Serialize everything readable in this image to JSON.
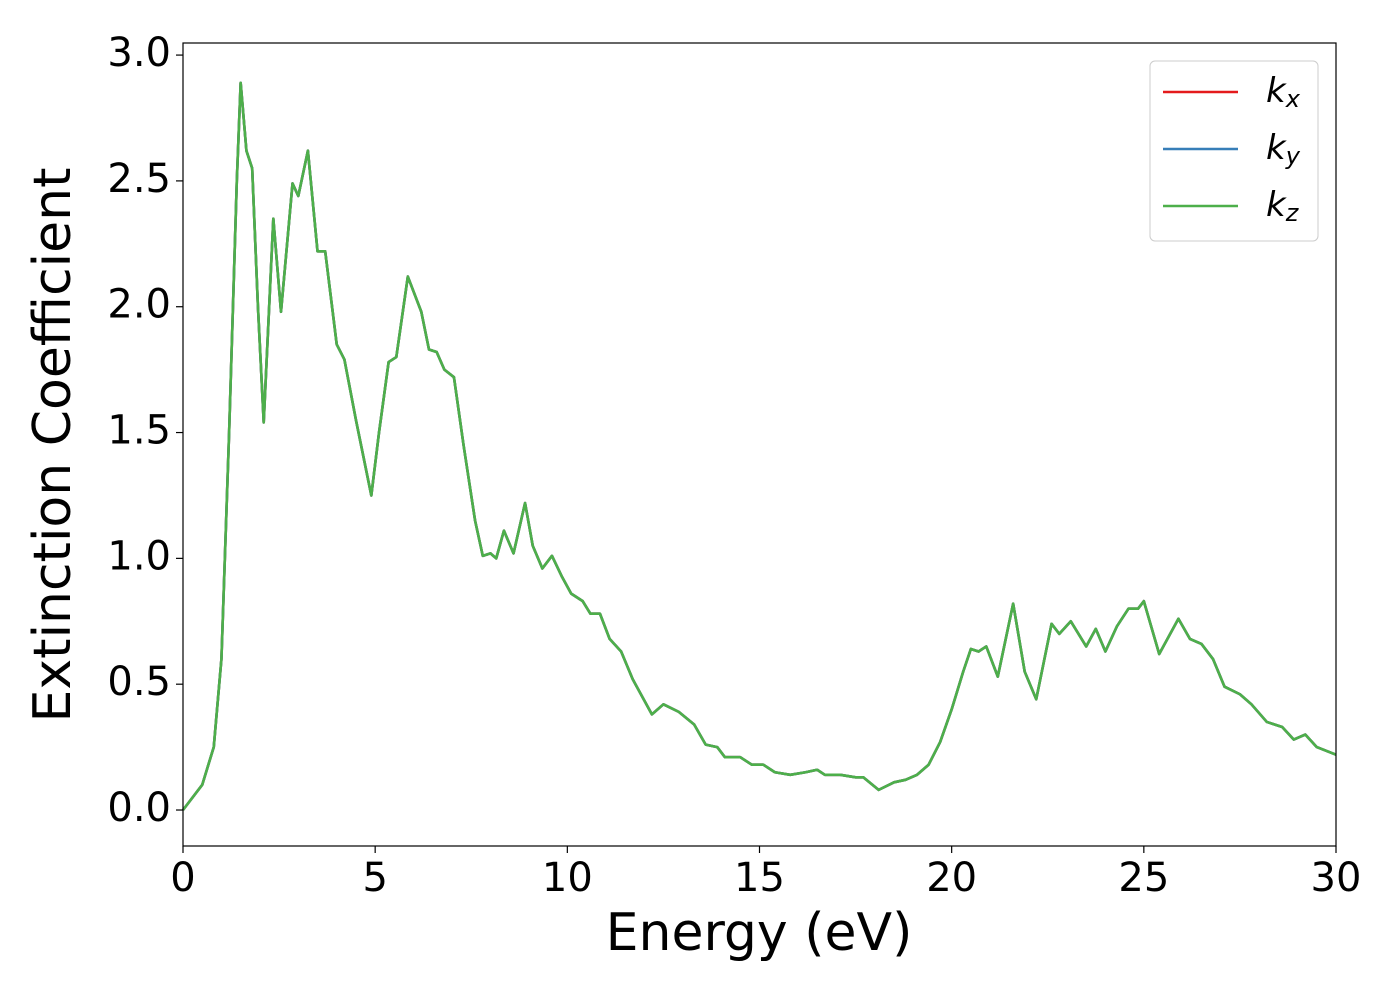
{
  "chart_data": {
    "type": "line",
    "xlabel": "Energy (eV)",
    "ylabel": "Extinction Coefficient",
    "x": [
      0,
      0.5,
      0.8,
      1.0,
      1.2,
      1.4,
      1.5,
      1.65,
      1.8,
      1.95,
      2.1,
      2.35,
      2.55,
      2.85,
      3.0,
      3.25,
      3.5,
      3.7,
      4.0,
      4.2,
      4.5,
      4.9,
      5.1,
      5.35,
      5.55,
      5.85,
      6.2,
      6.4,
      6.6,
      6.8,
      7.05,
      7.3,
      7.6,
      7.8,
      8.0,
      8.15,
      8.35,
      8.6,
      8.9,
      9.1,
      9.35,
      9.6,
      9.85,
      10.1,
      10.4,
      10.6,
      10.85,
      11.1,
      11.4,
      11.7,
      12.2,
      12.5,
      12.9,
      13.3,
      13.6,
      13.9,
      14.1,
      14.5,
      14.8,
      15.1,
      15.4,
      15.8,
      16.2,
      16.5,
      16.7,
      17.1,
      17.5,
      17.7,
      18.1,
      18.5,
      18.8,
      19.1,
      19.4,
      19.7,
      20.0,
      20.3,
      20.5,
      20.7,
      20.9,
      21.2,
      21.6,
      21.9,
      22.2,
      22.6,
      22.8,
      23.1,
      23.5,
      23.75,
      24.0,
      24.3,
      24.6,
      24.85,
      25.0,
      25.4,
      25.9,
      26.2,
      26.5,
      26.8,
      27.1,
      27.5,
      27.8,
      28.2,
      28.6,
      28.9,
      29.2,
      29.5,
      30.0
    ],
    "series": [
      {
        "name": "kx",
        "color": "#e41a1c",
        "values": [
          0,
          0.1,
          0.25,
          0.6,
          1.5,
          2.5,
          2.89,
          2.62,
          2.55,
          2.0,
          1.54,
          2.35,
          1.98,
          2.49,
          2.44,
          2.62,
          2.22,
          2.22,
          1.85,
          1.79,
          1.55,
          1.25,
          1.5,
          1.78,
          1.8,
          2.12,
          1.98,
          1.83,
          1.82,
          1.75,
          1.72,
          1.45,
          1.15,
          1.01,
          1.02,
          1.0,
          1.11,
          1.02,
          1.22,
          1.05,
          0.96,
          1.01,
          0.93,
          0.86,
          0.83,
          0.78,
          0.78,
          0.68,
          0.63,
          0.52,
          0.38,
          0.42,
          0.39,
          0.34,
          0.26,
          0.25,
          0.21,
          0.21,
          0.18,
          0.18,
          0.15,
          0.14,
          0.15,
          0.16,
          0.14,
          0.14,
          0.13,
          0.13,
          0.08,
          0.11,
          0.12,
          0.14,
          0.18,
          0.27,
          0.4,
          0.55,
          0.64,
          0.63,
          0.65,
          0.53,
          0.82,
          0.55,
          0.44,
          0.74,
          0.7,
          0.75,
          0.65,
          0.72,
          0.63,
          0.73,
          0.8,
          0.8,
          0.83,
          0.62,
          0.76,
          0.68,
          0.66,
          0.6,
          0.49,
          0.46,
          0.42,
          0.35,
          0.33,
          0.28,
          0.3,
          0.25,
          0.22
        ]
      },
      {
        "name": "ky",
        "color": "#377eb8",
        "values": [
          0,
          0.1,
          0.25,
          0.6,
          1.5,
          2.5,
          2.89,
          2.62,
          2.55,
          2.0,
          1.54,
          2.35,
          1.98,
          2.49,
          2.44,
          2.62,
          2.22,
          2.22,
          1.85,
          1.79,
          1.55,
          1.25,
          1.5,
          1.78,
          1.8,
          2.12,
          1.98,
          1.83,
          1.82,
          1.75,
          1.72,
          1.45,
          1.15,
          1.01,
          1.02,
          1.0,
          1.11,
          1.02,
          1.22,
          1.05,
          0.96,
          1.01,
          0.93,
          0.86,
          0.83,
          0.78,
          0.78,
          0.68,
          0.63,
          0.52,
          0.38,
          0.42,
          0.39,
          0.34,
          0.26,
          0.25,
          0.21,
          0.21,
          0.18,
          0.18,
          0.15,
          0.14,
          0.15,
          0.16,
          0.14,
          0.14,
          0.13,
          0.13,
          0.08,
          0.11,
          0.12,
          0.14,
          0.18,
          0.27,
          0.4,
          0.55,
          0.64,
          0.63,
          0.65,
          0.53,
          0.82,
          0.55,
          0.44,
          0.74,
          0.7,
          0.75,
          0.65,
          0.72,
          0.63,
          0.73,
          0.8,
          0.8,
          0.83,
          0.62,
          0.76,
          0.68,
          0.66,
          0.6,
          0.49,
          0.46,
          0.42,
          0.35,
          0.33,
          0.28,
          0.3,
          0.25,
          0.22
        ]
      },
      {
        "name": "kz",
        "color": "#4daf4a",
        "values": [
          0,
          0.1,
          0.25,
          0.6,
          1.5,
          2.5,
          2.89,
          2.62,
          2.55,
          2.0,
          1.54,
          2.35,
          1.98,
          2.49,
          2.44,
          2.62,
          2.22,
          2.22,
          1.85,
          1.79,
          1.55,
          1.25,
          1.5,
          1.78,
          1.8,
          2.12,
          1.98,
          1.83,
          1.82,
          1.75,
          1.72,
          1.45,
          1.15,
          1.01,
          1.02,
          1.0,
          1.11,
          1.02,
          1.22,
          1.05,
          0.96,
          1.01,
          0.93,
          0.86,
          0.83,
          0.78,
          0.78,
          0.68,
          0.63,
          0.52,
          0.38,
          0.42,
          0.39,
          0.34,
          0.26,
          0.25,
          0.21,
          0.21,
          0.18,
          0.18,
          0.15,
          0.14,
          0.15,
          0.16,
          0.14,
          0.14,
          0.13,
          0.13,
          0.08,
          0.11,
          0.12,
          0.14,
          0.18,
          0.27,
          0.4,
          0.55,
          0.64,
          0.63,
          0.65,
          0.53,
          0.82,
          0.55,
          0.44,
          0.74,
          0.7,
          0.75,
          0.65,
          0.72,
          0.63,
          0.73,
          0.8,
          0.8,
          0.83,
          0.62,
          0.76,
          0.68,
          0.66,
          0.6,
          0.49,
          0.46,
          0.42,
          0.35,
          0.33,
          0.28,
          0.3,
          0.25,
          0.22
        ]
      }
    ],
    "xlim": [
      0,
      30
    ],
    "xticks": [
      0,
      5,
      10,
      15,
      20,
      25,
      30
    ],
    "ylim": [
      -0.143,
      3.048
    ],
    "yticks": [
      {
        "value": 0,
        "label": "0.0"
      },
      {
        "value": 0.5,
        "label": "0.5"
      },
      {
        "value": 1,
        "label": "1.0"
      },
      {
        "value": 1.5,
        "label": "1.5"
      },
      {
        "value": 2,
        "label": "2.0"
      },
      {
        "value": 2.5,
        "label": "2.5"
      },
      {
        "value": 3,
        "label": "3.0"
      }
    ],
    "grid": false,
    "legend": "upper right"
  }
}
